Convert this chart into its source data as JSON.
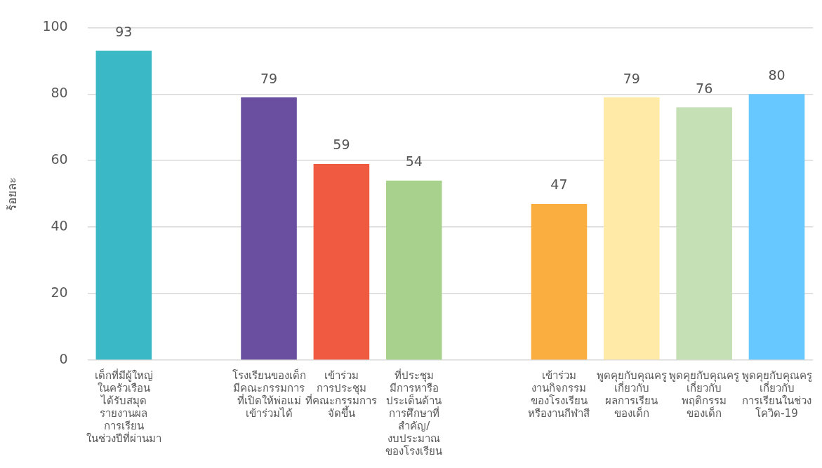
{
  "chart_data": {
    "type": "bar",
    "ylabel": "ร้อยละ",
    "categories": [
      "เด็กที่มีผู้ใหญ่\nในครัวเรือน\nได้รับสมุด\nรายงานผล\nการเรียน\nในช่วงปีที่ผ่านมา",
      null,
      "โรงเรียนของเด็ก\nมีคณะกรรมการ\nที่เปิดให้พ่อแม่\nเข้าร่วมได้",
      "เข้าร่วม\nการประชุม\nที่คณะกรรมการ\nจัดขึ้น",
      "ที่ประชุม\nมีการหารือ\nประเด็นด้าน\nการศึกษาที่\nสำคัญ/\nงบประมาณ\nของโรงเรียน",
      null,
      "เข้าร่วม\nงานกิจกรรม\nของโรงเรียน\nหรืองานกีฬาสี",
      "พูดคุยกับคุณครู\nเกี่ยวกับ\nผลการเรียน\nของเด็ก",
      "พูดคุยกับคุณครู\nเกี่ยวกับ\nพฤติกรรม\nของเด็ก",
      "พูดคุยกับคุณครู\nเกี่ยวกับ\nการเรียนในช่วง\nโควิด-19"
    ],
    "values": [
      93,
      null,
      79,
      59,
      54,
      null,
      47,
      79,
      76,
      80
    ],
    "colors": [
      "#3ab8c6",
      "#3ab8c6",
      "#6a4fa0",
      "#f05a40",
      "#a9d18e",
      "#a9d18e",
      "#fbae40",
      "#ffeaa8",
      "#c5e0b4",
      "#66c8fe"
    ],
    "ylim": [
      0,
      100
    ],
    "yticks": [
      0,
      20,
      40,
      60,
      80,
      100
    ],
    "grid": "y",
    "data_labels": true
  }
}
